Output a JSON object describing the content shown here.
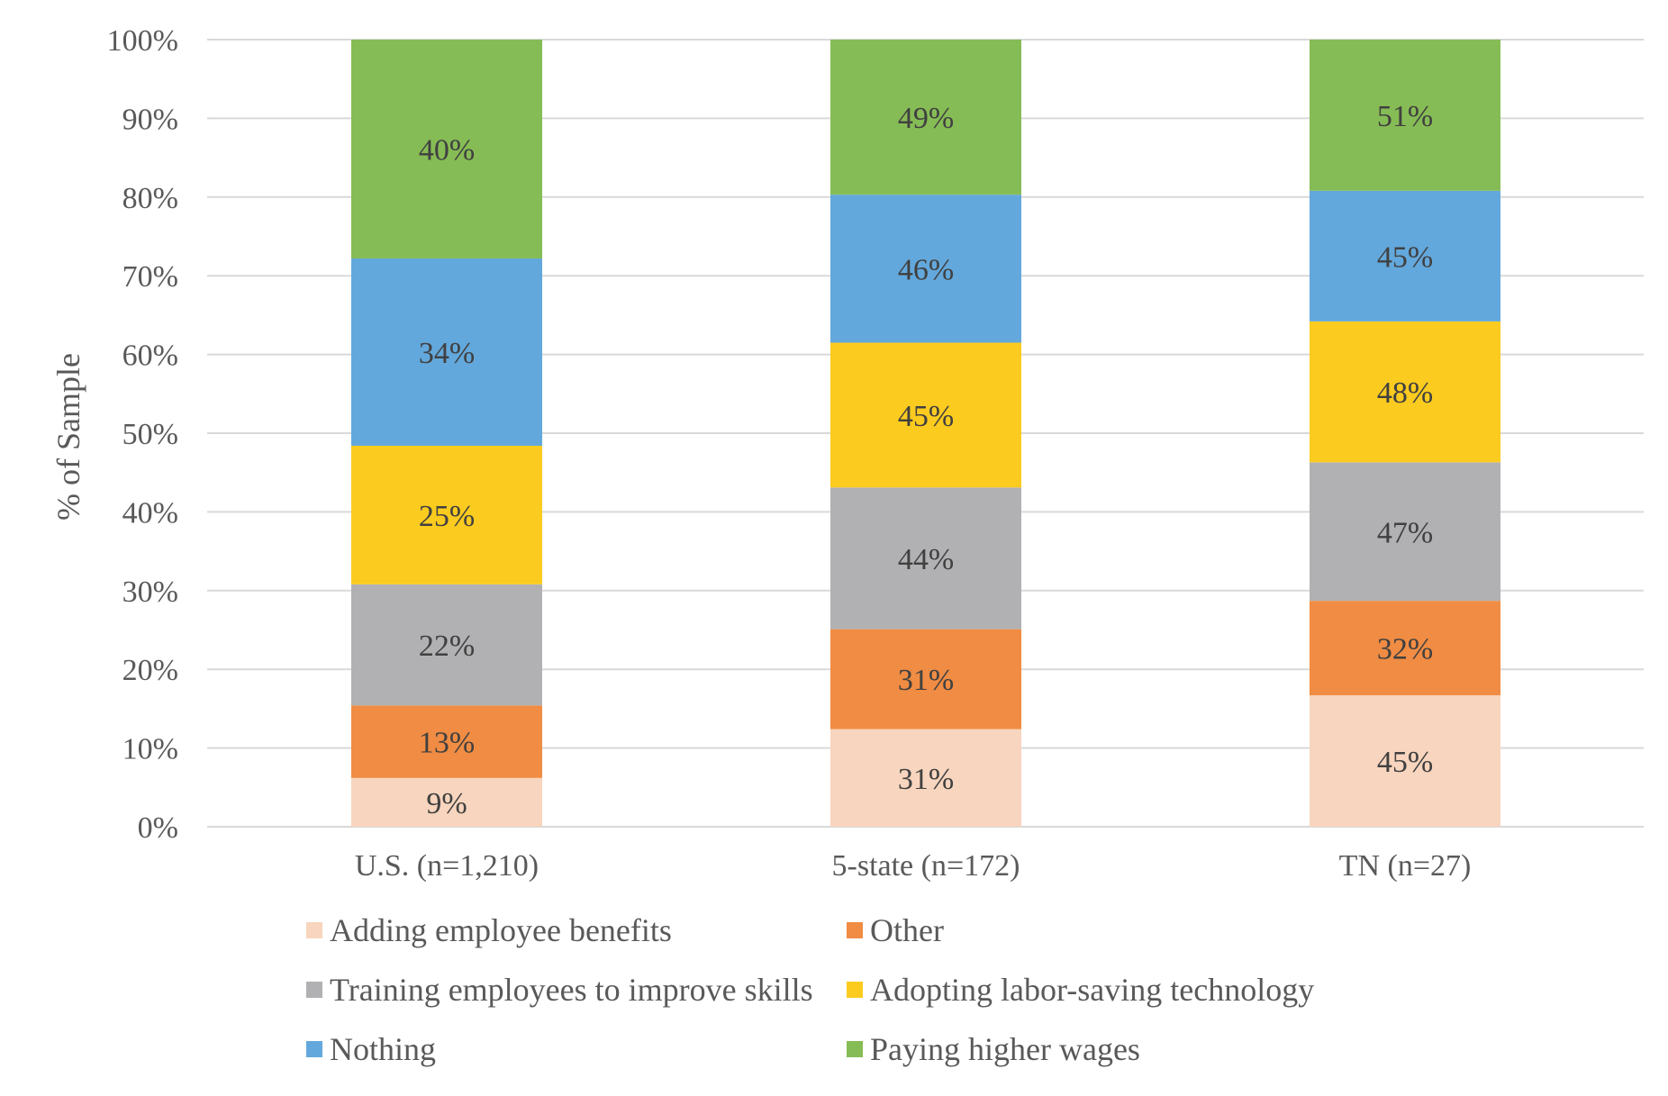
{
  "chart_data": {
    "type": "bar",
    "stacked": true,
    "title": "",
    "xlabel": "",
    "ylabel": "% of Sample",
    "ylim": [
      0,
      100
    ],
    "y_ticks": [
      "0%",
      "10%",
      "20%",
      "30%",
      "40%",
      "50%",
      "60%",
      "70%",
      "80%",
      "90%",
      "100%"
    ],
    "grid": true,
    "legend_position": "bottom",
    "categories": [
      "U.S. (n=1,210)",
      "5-state (n=172)",
      "TN (n=27)"
    ],
    "series": [
      {
        "name": "Adding employee benefits",
        "color": "#F8D5BE",
        "values": [
          6.2,
          12.4,
          16.7
        ],
        "labels": [
          "9%",
          "31%",
          "45%"
        ]
      },
      {
        "name": "Other",
        "color": "#F08C43",
        "values": [
          9.2,
          12.7,
          12.0
        ],
        "labels": [
          "13%",
          "31%",
          "32%"
        ]
      },
      {
        "name": "Training employees to improve skills",
        "color": "#B1B1B3",
        "values": [
          15.4,
          18.0,
          17.6
        ],
        "labels": [
          "22%",
          "44%",
          "47%"
        ]
      },
      {
        "name": "Adopting labor-saving technology",
        "color": "#FCCB1F",
        "values": [
          17.6,
          18.4,
          17.9
        ],
        "labels": [
          "25%",
          "45%",
          "48%"
        ]
      },
      {
        "name": "Nothing",
        "color": "#63A8DC",
        "values": [
          23.8,
          18.8,
          16.6
        ],
        "labels": [
          "34%",
          "46%",
          "45%"
        ]
      },
      {
        "name": "Paying higher wages",
        "color": "#86BC55",
        "values": [
          27.8,
          19.7,
          19.2
        ],
        "labels": [
          "40%",
          "49%",
          "51%"
        ]
      }
    ],
    "legend_order": [
      "Adding employee benefits",
      "Other",
      "Training employees to improve skills",
      "Adopting labor-saving technology",
      "Nothing",
      "Paying higher wages"
    ]
  }
}
